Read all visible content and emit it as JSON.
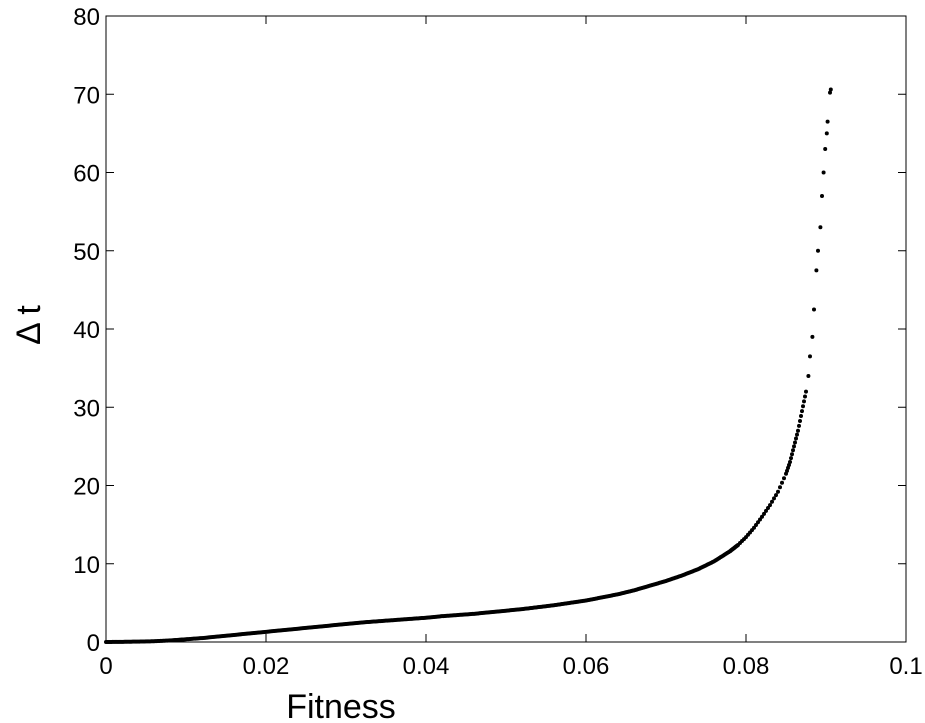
{
  "chart_data": {
    "type": "scatter",
    "title": "",
    "xlabel": "Fitness",
    "ylabel": "Δ t",
    "xlim": [
      0,
      0.1
    ],
    "ylim": [
      0,
      80
    ],
    "xticks": [
      0,
      0.02,
      0.04,
      0.06,
      0.08,
      0.1
    ],
    "yticks": [
      0,
      10,
      20,
      30,
      40,
      50,
      60,
      70,
      80
    ],
    "xtick_labels": [
      "0",
      "0.02",
      "0.04",
      "0.06",
      "0.08",
      "0.1"
    ],
    "ytick_labels": [
      "0",
      "10",
      "20",
      "30",
      "40",
      "50",
      "60",
      "70",
      "80"
    ],
    "grid": false,
    "marker_color": "#000000",
    "series": [
      {
        "points": [
          [
            0.0,
            0.0
          ],
          [
            0.002,
            0.02
          ],
          [
            0.004,
            0.05
          ],
          [
            0.006,
            0.1
          ],
          [
            0.008,
            0.2
          ],
          [
            0.01,
            0.35
          ],
          [
            0.012,
            0.5
          ],
          [
            0.014,
            0.7
          ],
          [
            0.016,
            0.9
          ],
          [
            0.018,
            1.1
          ],
          [
            0.02,
            1.3
          ],
          [
            0.022,
            1.5
          ],
          [
            0.024,
            1.7
          ],
          [
            0.026,
            1.9
          ],
          [
            0.028,
            2.1
          ],
          [
            0.03,
            2.3
          ],
          [
            0.032,
            2.5
          ],
          [
            0.034,
            2.65
          ],
          [
            0.036,
            2.8
          ],
          [
            0.038,
            2.95
          ],
          [
            0.04,
            3.1
          ],
          [
            0.042,
            3.3
          ],
          [
            0.044,
            3.45
          ],
          [
            0.046,
            3.6
          ],
          [
            0.048,
            3.8
          ],
          [
            0.05,
            4.0
          ],
          [
            0.052,
            4.2
          ],
          [
            0.054,
            4.45
          ],
          [
            0.056,
            4.7
          ],
          [
            0.058,
            5.0
          ],
          [
            0.06,
            5.3
          ],
          [
            0.062,
            5.7
          ],
          [
            0.064,
            6.1
          ],
          [
            0.066,
            6.6
          ],
          [
            0.068,
            7.2
          ],
          [
            0.07,
            7.8
          ],
          [
            0.072,
            8.5
          ],
          [
            0.074,
            9.3
          ],
          [
            0.076,
            10.3
          ],
          [
            0.078,
            11.6
          ],
          [
            0.079,
            12.4
          ],
          [
            0.08,
            13.4
          ],
          [
            0.081,
            14.6
          ],
          [
            0.082,
            16.0
          ],
          [
            0.083,
            17.5
          ],
          [
            0.084,
            19.2
          ],
          [
            0.085,
            21.5
          ],
          [
            0.0855,
            23.0
          ],
          [
            0.086,
            25.0
          ],
          [
            0.0865,
            27.0
          ],
          [
            0.087,
            29.5
          ],
          [
            0.0875,
            32.0
          ],
          [
            0.0878,
            34.0
          ],
          [
            0.088,
            36.5
          ],
          [
            0.0883,
            39.0
          ],
          [
            0.0885,
            42.5
          ],
          [
            0.0888,
            47.5
          ],
          [
            0.089,
            50.0
          ],
          [
            0.0893,
            53.0
          ],
          [
            0.0895,
            57.0
          ],
          [
            0.0897,
            60.0
          ],
          [
            0.0899,
            63.0
          ],
          [
            0.0901,
            65.0
          ],
          [
            0.0902,
            66.5
          ],
          [
            0.0905,
            70.2
          ],
          [
            0.0906,
            70.6
          ]
        ]
      }
    ]
  }
}
